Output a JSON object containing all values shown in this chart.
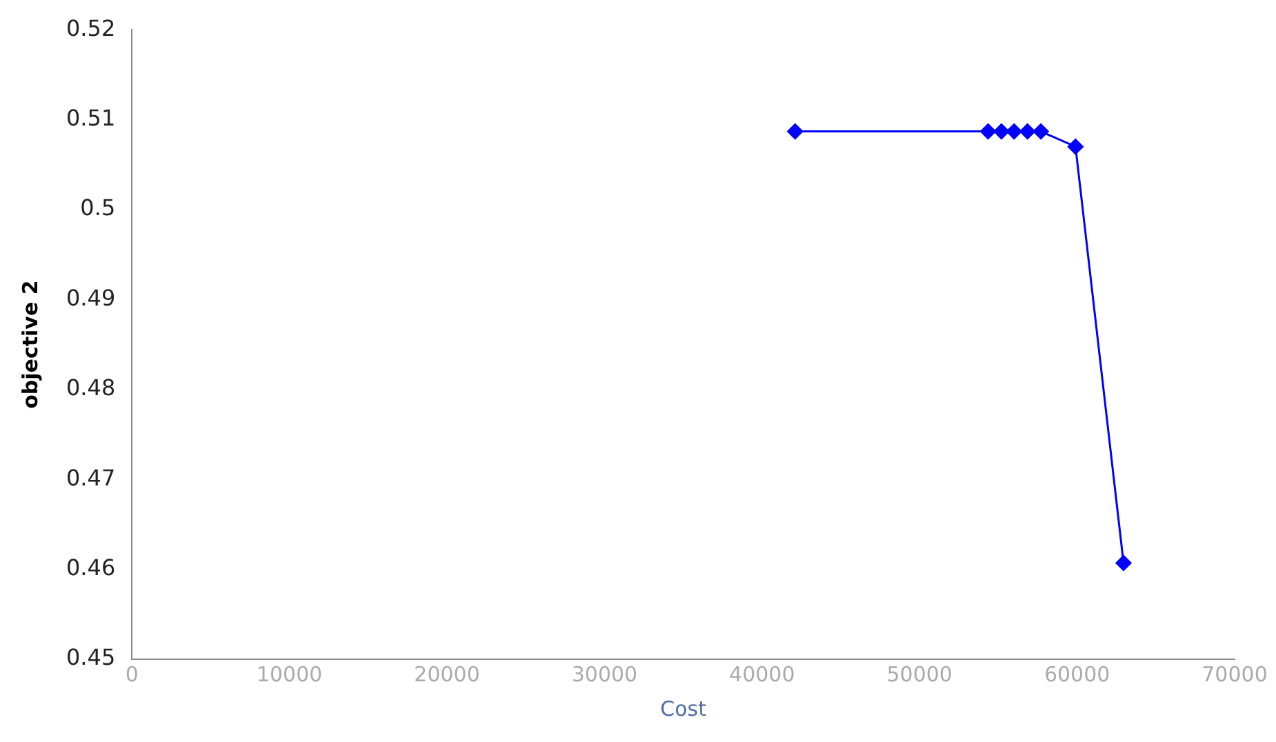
{
  "chart_data": {
    "type": "line",
    "xlabel": "Cost",
    "ylabel": "objective 2",
    "x": [
      42100,
      54350,
      55200,
      56000,
      56850,
      57700,
      59900,
      62950
    ],
    "series": [
      {
        "color": "#0000ff",
        "values": [
          0.5087,
          0.5087,
          0.5087,
          0.5087,
          0.5087,
          0.5087,
          0.507,
          0.4607
        ]
      }
    ],
    "xlim": [
      0,
      70000
    ],
    "xticks": [
      0,
      10000,
      20000,
      30000,
      40000,
      50000,
      60000,
      70000
    ],
    "ylim": [
      0.45,
      0.52
    ],
    "yticks": [
      0.45,
      0.46,
      0.47,
      0.48,
      0.49,
      0.5,
      0.51,
      0.52
    ],
    "grid": false,
    "legend": false,
    "marker": "diamond",
    "line_style": "solid"
  }
}
